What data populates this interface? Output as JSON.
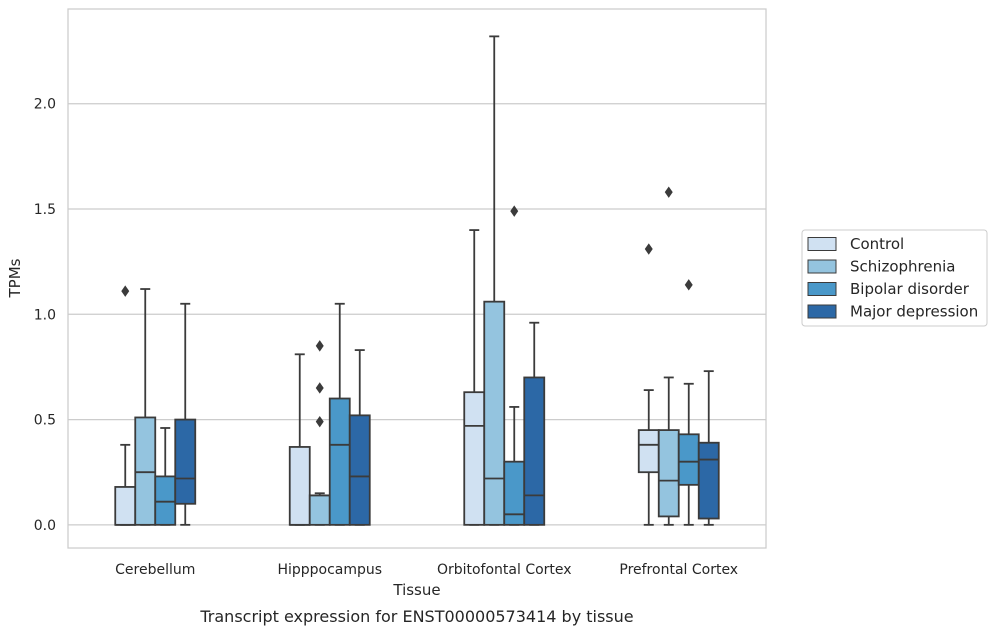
{
  "caption": "Transcript expression for ENST00000573414 by tissue",
  "chart_data": {
    "type": "box",
    "xlabel": "Tissue",
    "ylabel": "TPMs",
    "ylim": [
      -0.11,
      2.45
    ],
    "yticks": [
      "0.0",
      "0.5",
      "1.0",
      "1.5",
      "2.0"
    ],
    "ytick_values": [
      0.0,
      0.5,
      1.0,
      1.5,
      2.0
    ],
    "grid": "horizontal",
    "legend_position": "right",
    "categories": [
      "Cerebellum",
      "Hipppocampus",
      "Orbitofontal Cortex",
      "Prefrontal Cortex"
    ],
    "series": [
      {
        "name": "Control",
        "color": "#d0e1f2",
        "boxes": [
          {
            "whisker_low": 0.0,
            "q1": 0.0,
            "median": 0.0,
            "q3": 0.18,
            "whisker_high": 0.38,
            "outliers": [
              1.11
            ]
          },
          {
            "whisker_low": 0.0,
            "q1": 0.0,
            "median": 0.0,
            "q3": 0.37,
            "whisker_high": 0.81,
            "outliers": []
          },
          {
            "whisker_low": 0.0,
            "q1": 0.0,
            "median": 0.47,
            "q3": 0.63,
            "whisker_high": 1.4,
            "outliers": []
          },
          {
            "whisker_low": 0.0,
            "q1": 0.25,
            "median": 0.38,
            "q3": 0.45,
            "whisker_high": 0.64,
            "outliers": [
              1.31
            ]
          }
        ]
      },
      {
        "name": "Schizophrenia",
        "color": "#94c4df",
        "boxes": [
          {
            "whisker_low": 0.0,
            "q1": 0.0,
            "median": 0.25,
            "q3": 0.51,
            "whisker_high": 1.12,
            "outliers": []
          },
          {
            "whisker_low": 0.0,
            "q1": 0.0,
            "median": 0.14,
            "q3": 0.14,
            "whisker_high": 0.15,
            "outliers": [
              0.49,
              0.65,
              0.85
            ]
          },
          {
            "whisker_low": 0.0,
            "q1": 0.0,
            "median": 0.22,
            "q3": 1.06,
            "whisker_high": 2.32,
            "outliers": []
          },
          {
            "whisker_low": 0.0,
            "q1": 0.04,
            "median": 0.21,
            "q3": 0.45,
            "whisker_high": 0.7,
            "outliers": [
              1.58
            ]
          }
        ]
      },
      {
        "name": "Bipolar disorder",
        "color": "#4a98c9",
        "boxes": [
          {
            "whisker_low": 0.0,
            "q1": 0.0,
            "median": 0.11,
            "q3": 0.23,
            "whisker_high": 0.46,
            "outliers": []
          },
          {
            "whisker_low": 0.0,
            "q1": 0.0,
            "median": 0.38,
            "q3": 0.6,
            "whisker_high": 1.05,
            "outliers": []
          },
          {
            "whisker_low": 0.0,
            "q1": 0.0,
            "median": 0.05,
            "q3": 0.3,
            "whisker_high": 0.56,
            "outliers": [
              1.49
            ]
          },
          {
            "whisker_low": 0.0,
            "q1": 0.19,
            "median": 0.3,
            "q3": 0.43,
            "whisker_high": 0.67,
            "outliers": [
              1.14
            ]
          }
        ]
      },
      {
        "name": "Major depression",
        "color": "#2c68a6",
        "boxes": [
          {
            "whisker_low": 0.0,
            "q1": 0.1,
            "median": 0.22,
            "q3": 0.5,
            "whisker_high": 1.05,
            "outliers": []
          },
          {
            "whisker_low": 0.0,
            "q1": 0.0,
            "median": 0.23,
            "q3": 0.52,
            "whisker_high": 0.83,
            "outliers": []
          },
          {
            "whisker_low": 0.0,
            "q1": 0.0,
            "median": 0.14,
            "q3": 0.7,
            "whisker_high": 0.96,
            "outliers": []
          },
          {
            "whisker_low": 0.0,
            "q1": 0.03,
            "median": 0.31,
            "q3": 0.39,
            "whisker_high": 0.73,
            "outliers": []
          }
        ]
      }
    ]
  }
}
